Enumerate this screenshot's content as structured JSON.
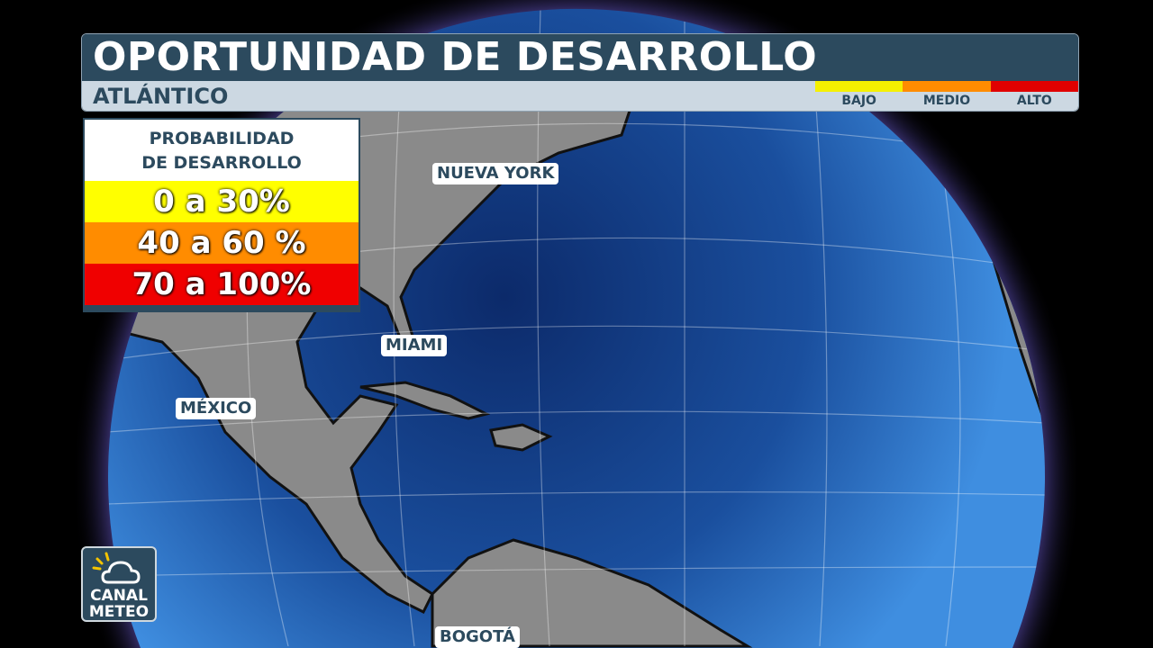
{
  "header": {
    "title": "OPORTUNIDAD DE DESARROLLO",
    "subtitle": "ATLÁNTICO",
    "scale": [
      {
        "label": "BAJO",
        "color": "#f5f000"
      },
      {
        "label": "MEDIO",
        "color": "#ff8c00"
      },
      {
        "label": "ALTO",
        "color": "#e00000"
      }
    ]
  },
  "legend": {
    "title_line1": "PROBABILIDAD",
    "title_line2": "DE DESARROLLO",
    "rows": [
      {
        "label": "0 a 30%",
        "color": "#ffff00"
      },
      {
        "label": "40 a 60 %",
        "color": "#ff8c00"
      },
      {
        "label": "70 a 100%",
        "color": "#f00000"
      }
    ]
  },
  "cities": {
    "nueva_york": "NUEVA YORK",
    "miami": "MIAMI",
    "mexico": "MÉXICO",
    "bogota": "BOGOTÁ"
  },
  "logo": {
    "text_line1": "CANAL",
    "text_line2": "METEO"
  },
  "colors": {
    "ocean": "#1c5fb0",
    "land": "#8a8a8a",
    "panel": "#2c4a5e"
  }
}
